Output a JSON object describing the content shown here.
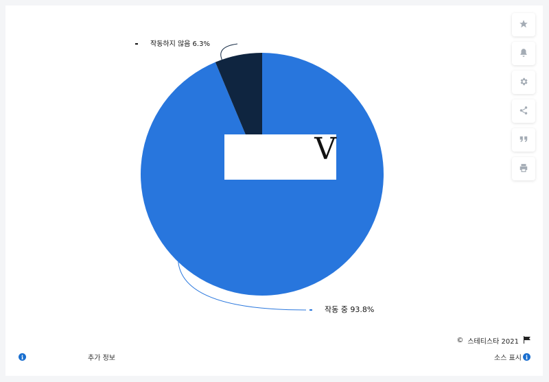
{
  "chart_data": {
    "type": "pie",
    "slices": [
      {
        "label": "작동 중",
        "value": 93.8,
        "value_label": "93.8%",
        "color": "#2876dd",
        "legend_marker_color": "#2876dd"
      },
      {
        "label": "작동하지 않음",
        "value": 6.3,
        "value_label": "6.3%",
        "color": "#0f2540",
        "legend_marker_color": "#111111"
      }
    ]
  },
  "overlay": {
    "letter": "V"
  },
  "toolbar": {
    "buttons": [
      {
        "icon": "star-icon"
      },
      {
        "icon": "bell-icon"
      },
      {
        "icon": "gear-icon"
      },
      {
        "icon": "share-icon"
      },
      {
        "icon": "quote-icon"
      },
      {
        "icon": "print-icon"
      }
    ]
  },
  "footer": {
    "copyright_symbol": "©",
    "credit": "스테티스타 2021",
    "more_info": "추가 정보",
    "show_source": "소스 표시",
    "info_glyph": "i"
  }
}
